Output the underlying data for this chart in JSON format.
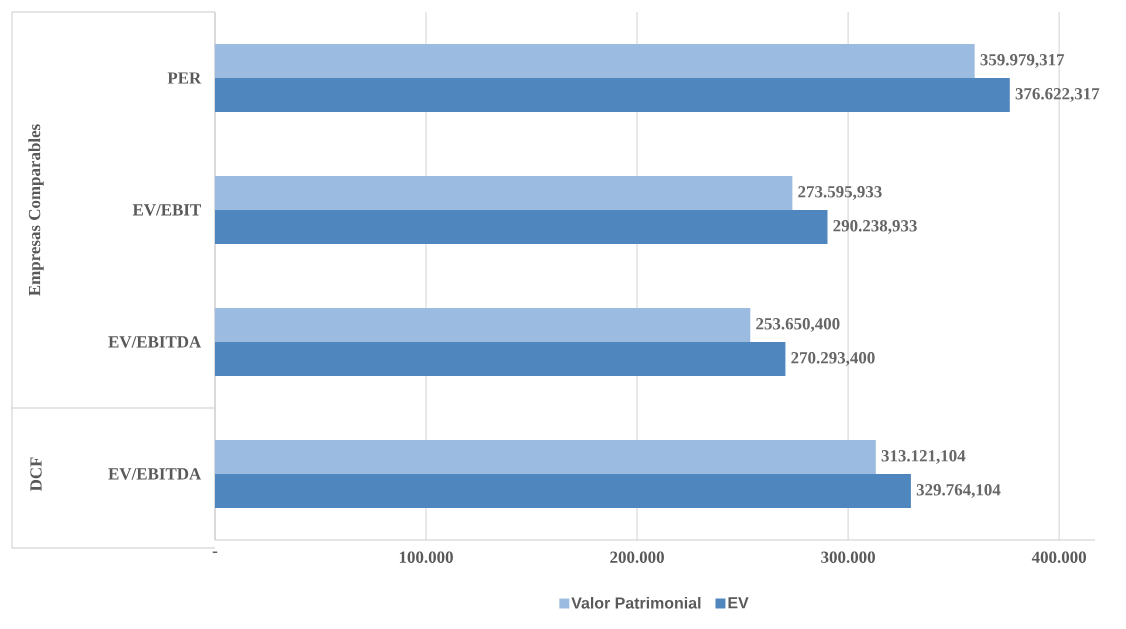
{
  "chart_data": {
    "type": "bar",
    "orientation": "horizontal",
    "categories": [
      "PER",
      "EV/EBIT",
      "EV/EBITDA",
      "EV/EBITDA"
    ],
    "series": [
      {
        "name": "Valor Patrimonial",
        "color": "#9bbbe0",
        "values": [
          359979.317,
          273595.933,
          253650.4,
          313121.104
        ],
        "value_labels": [
          "359.979,317",
          "273.595,933",
          "253.650,400",
          "313.121,104"
        ]
      },
      {
        "name": "EV",
        "color": "#4f86bd",
        "values": [
          376622.317,
          290238.933,
          270293.4,
          329764.104
        ],
        "value_labels": [
          "376.622,317",
          "290.238,933",
          "270.293,400",
          "329.764,104"
        ]
      }
    ],
    "xlim": [
      0,
      417000
    ],
    "xticks": [
      {
        "value": 0,
        "label": "-"
      },
      {
        "value": 100000,
        "label": "100.000"
      },
      {
        "value": 200000,
        "label": "200.000"
      },
      {
        "value": 300000,
        "label": "300.000"
      },
      {
        "value": 400000,
        "label": "400.000"
      }
    ],
    "annotations": [
      "Empresas Comparables",
      "DCF"
    ],
    "grid": "x",
    "legend": "bottom"
  }
}
